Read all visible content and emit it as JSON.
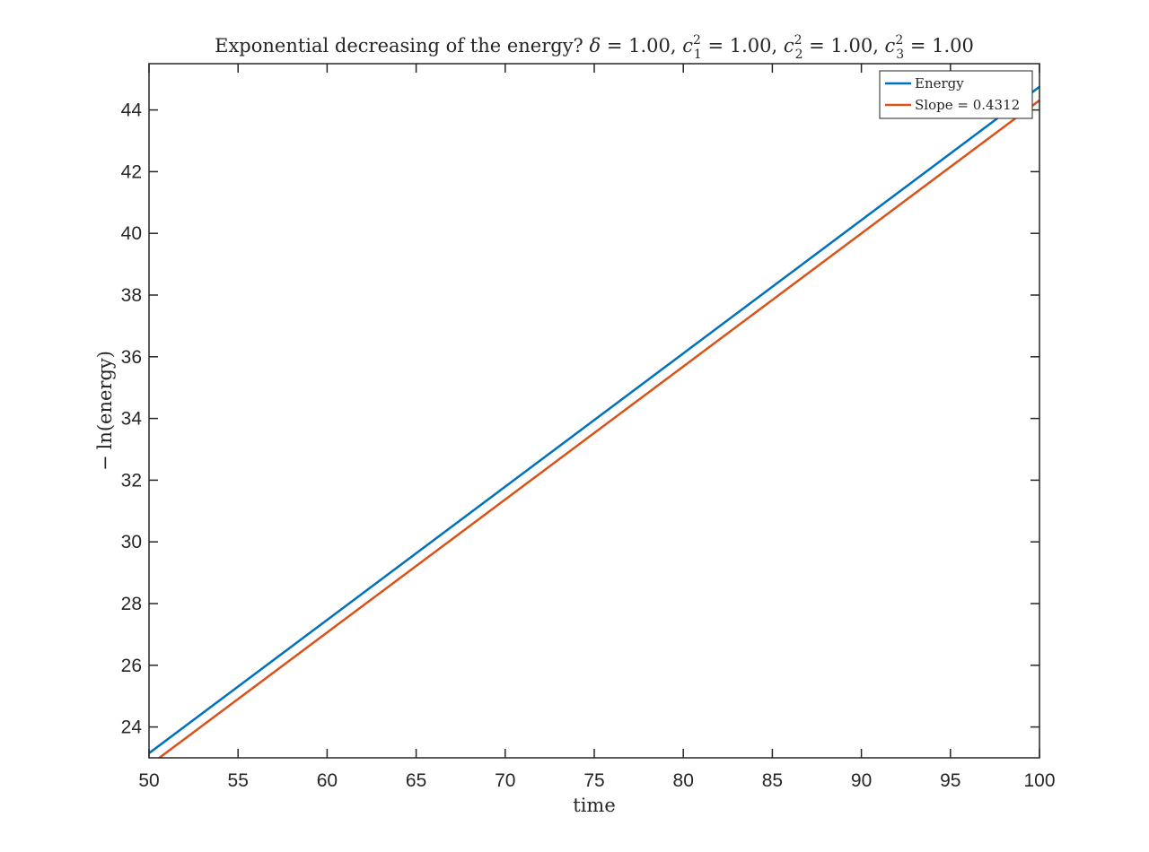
{
  "chart_data": {
    "type": "line",
    "title": {
      "prefix": "Exponential decreasing of the energy? ",
      "delta": "δ",
      "delta_value": " = 1.00, ",
      "c": "c",
      "sup": "2",
      "sub1": "1",
      "sub2": "2",
      "sub3": "3",
      "c1_value": " = 1.00, ",
      "c2_value": " = 1.00, ",
      "c3_value": " = 1.00"
    },
    "xlabel": "time",
    "ylabel_minus": "−",
    "ylabel": "ln(energy)",
    "xlim": [
      50,
      100
    ],
    "ylim": [
      23,
      45.5
    ],
    "x_ticks": [
      50,
      55,
      60,
      65,
      70,
      75,
      80,
      85,
      90,
      95,
      100
    ],
    "y_ticks": [
      24,
      26,
      28,
      30,
      32,
      34,
      36,
      38,
      40,
      42,
      44
    ],
    "grid": false,
    "legend_position": "top-right",
    "series": [
      {
        "name": "Energy",
        "color": "#0072BD",
        "x": [
          50,
          100
        ],
        "y": [
          23.15,
          44.75
        ]
      },
      {
        "name": "Slope = 0.4312",
        "color": "#D95319",
        "x": [
          50,
          100
        ],
        "y": [
          22.75,
          44.31
        ]
      }
    ]
  }
}
